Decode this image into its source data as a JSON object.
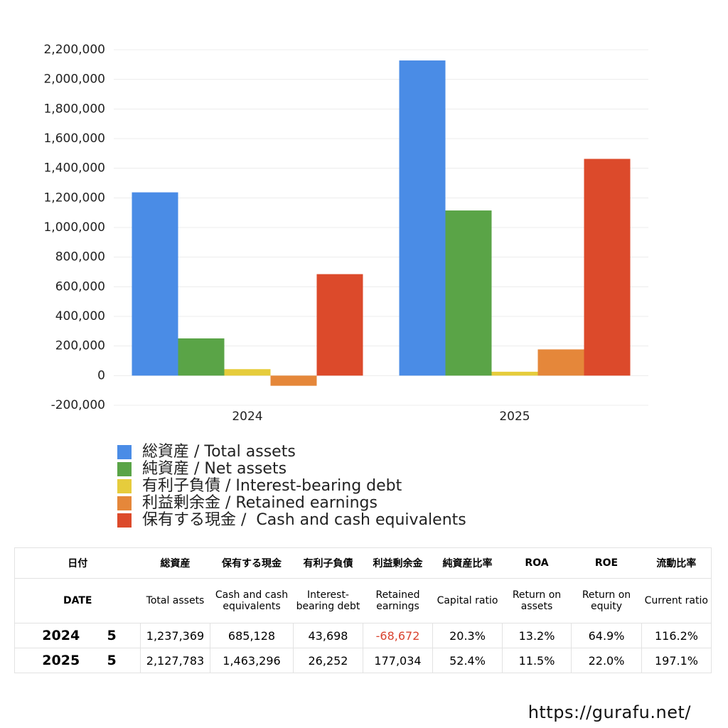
{
  "chart_data": {
    "type": "bar",
    "categories": [
      "2024",
      "2025"
    ],
    "series": [
      {
        "name": "総資産 / Total assets",
        "color": "#4a8ce6",
        "values": [
          1237369,
          2127783
        ]
      },
      {
        "name": "純資産 / Net assets",
        "color": "#5aa447",
        "values": [
          251186,
          1114958
        ]
      },
      {
        "name": "有利子負債 / Interest-bearing debt",
        "color": "#e6cc3c",
        "values": [
          43698,
          26252
        ]
      },
      {
        "name": "利益剰余金 / Retained earnings",
        "color": "#e5873a",
        "values": [
          -68672,
          177034
        ]
      },
      {
        "name": "保有する現金 /  Cash and cash equivalents",
        "color": "#dc4a2b",
        "values": [
          685128,
          1463296
        ]
      }
    ],
    "ylim": [
      -200000,
      2200000
    ],
    "yticks": [
      {
        "value": -200000,
        "label": "-200,000"
      },
      0,
      {
        "value": 200000,
        "label": "200,000"
      },
      {
        "value": 400000,
        "label": "400,000"
      },
      {
        "value": 600000,
        "label": "600,000"
      },
      {
        "value": 800000,
        "label": "800,000"
      },
      {
        "value": 1000000,
        "label": "1,000,000"
      },
      {
        "value": 1200000,
        "label": "1,200,000"
      },
      {
        "value": 1400000,
        "label": "1,400,000"
      },
      {
        "value": 1600000,
        "label": "1,600,000"
      },
      {
        "value": 1800000,
        "label": "1,800,000"
      },
      {
        "value": 2000000,
        "label": "2,000,000"
      },
      {
        "value": 2200000,
        "label": "2,200,000"
      }
    ],
    "grid": true,
    "legend": "bottom"
  },
  "table": {
    "header_ja": [
      "日付",
      "総資産",
      "保有する現金",
      "有利子負債",
      "利益剰余金",
      "純資産比率",
      "ROA",
      "ROE",
      "流動比率"
    ],
    "header_en": [
      "DATE",
      "Total assets",
      "Cash and cash equivalents",
      "Interest-bearing debt",
      "Retained earnings",
      "Capital ratio",
      "Return on assets",
      "Return on equity",
      "Current ratio"
    ],
    "rows": [
      [
        "2024",
        "5",
        "1,237,369",
        "685,128",
        "43,698",
        "-68,672",
        "20.3%",
        "13.2%",
        "64.9%",
        "116.2%"
      ],
      [
        "2025",
        "5",
        "2,127,783",
        "1,463,296",
        "26,252",
        "177,034",
        "52.4%",
        "11.5%",
        "22.0%",
        "197.1%"
      ]
    ]
  },
  "footer": {
    "url": "https://gurafu.net/"
  }
}
